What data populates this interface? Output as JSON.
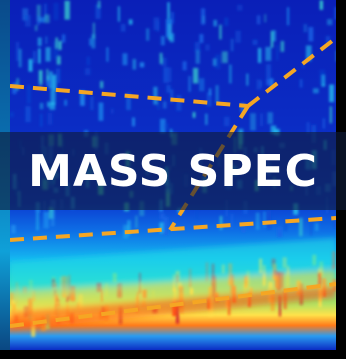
{
  "banner": {
    "title": "MASS SPEC"
  },
  "colors": {
    "background": "#0b1fb0",
    "dash_line": "#f5a623",
    "title_band": "#0e1c3a",
    "title_text": "#ffffff"
  },
  "icons": [
    "spectrogram-image"
  ]
}
